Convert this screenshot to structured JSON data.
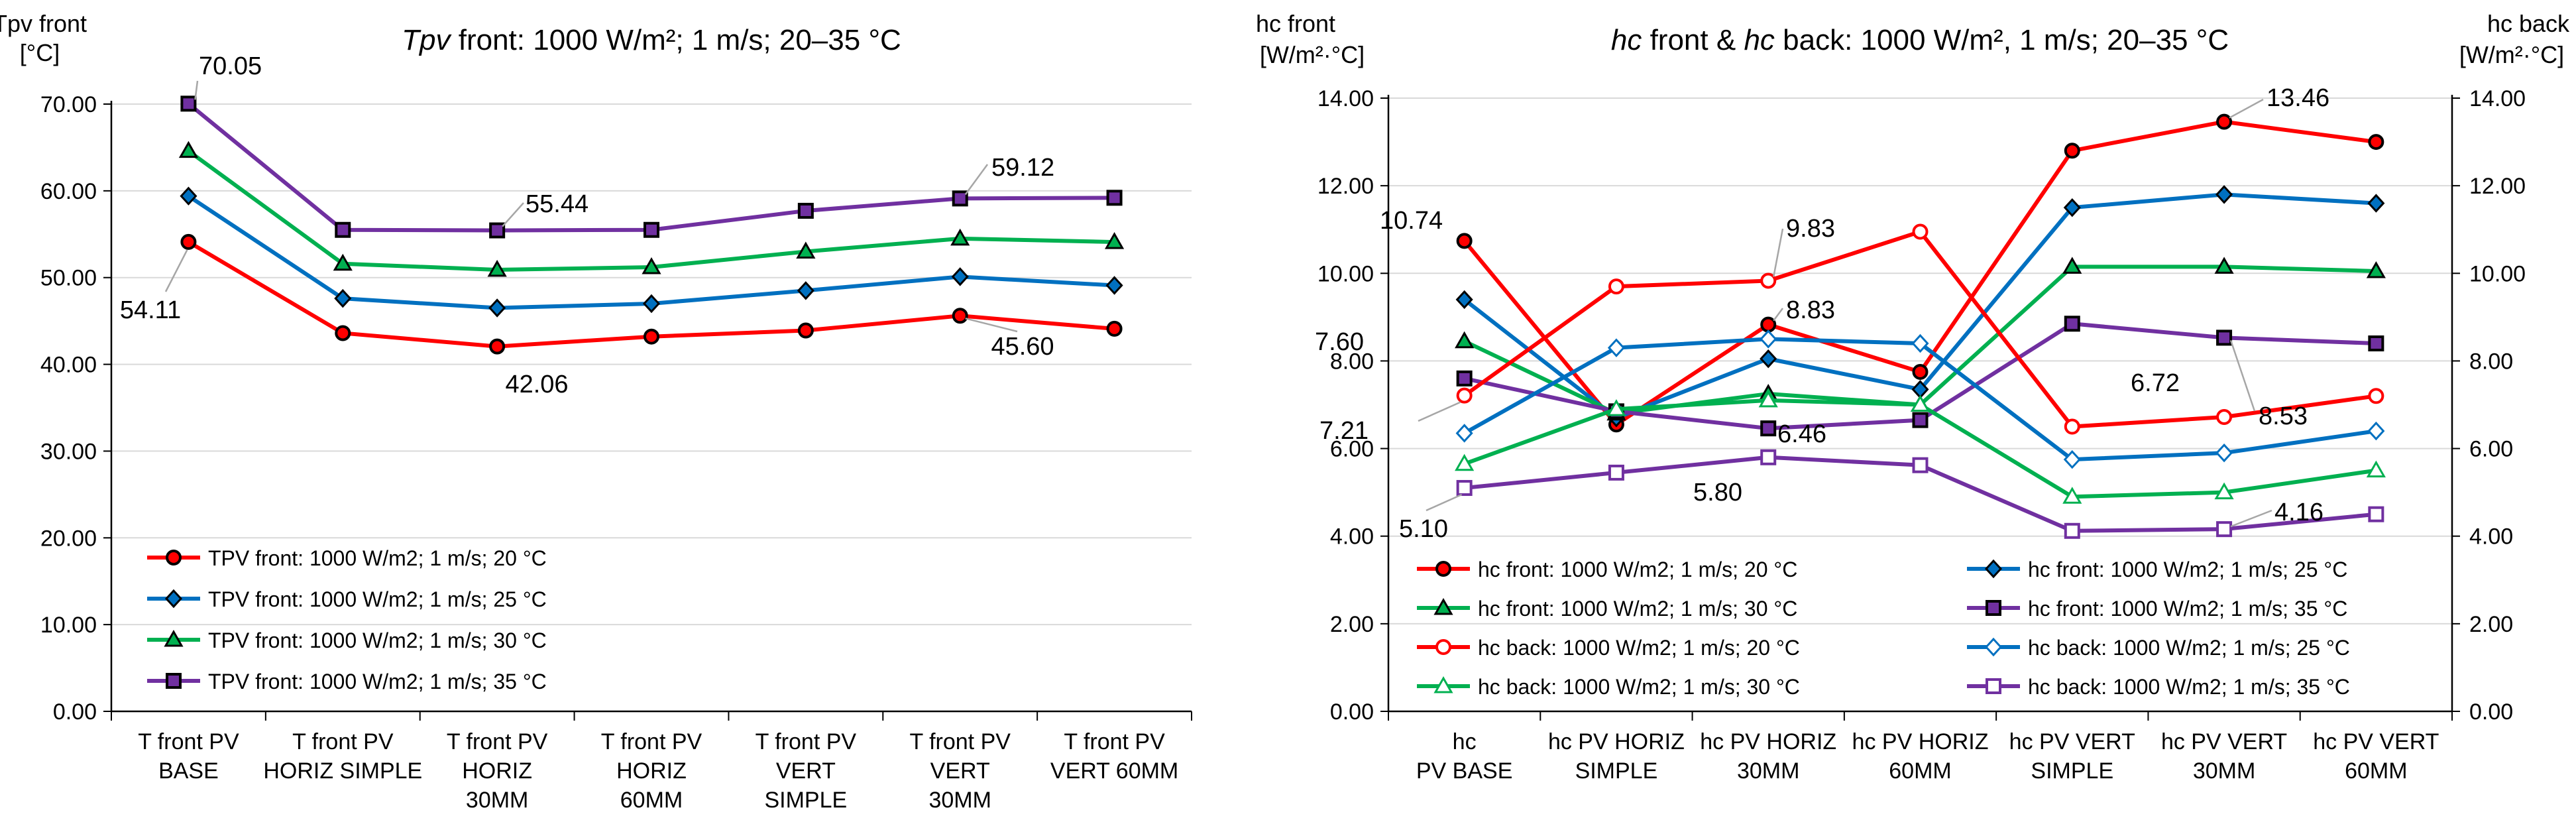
{
  "chart_data": [
    {
      "type": "line",
      "title": "front: 1000 W/m²; 1 m/s; 20–35 °C",
      "title_italic": "Tpv",
      "ylabel_lines": [
        "Tpv front",
        "[°C]"
      ],
      "ylim": [
        0,
        70
      ],
      "yticks": [
        "0.00",
        "10.00",
        "20.00",
        "30.00",
        "40.00",
        "50.00",
        "60.00",
        "70.00"
      ],
      "grid": true,
      "legend_position": "bottom-left",
      "categories": [
        [
          "T front PV",
          "BASE"
        ],
        [
          "T front PV",
          "HORIZ SIMPLE"
        ],
        [
          "T front PV",
          "HORIZ",
          "30MM"
        ],
        [
          "T front PV",
          "HORIZ",
          "60MM"
        ],
        [
          "T front PV",
          "VERT",
          "SIMPLE"
        ],
        [
          "T front PV",
          "VERT",
          "30MM"
        ],
        [
          "T front PV",
          "VERT      60MM"
        ]
      ],
      "series": [
        {
          "name": "TPV front: 1000 W/m2; 1 m/s; 20 °C",
          "color": "#ff0000",
          "marker": "circle",
          "values": [
            54.11,
            43.6,
            42.06,
            43.2,
            43.9,
            45.6,
            44.1
          ]
        },
        {
          "name": "TPV front: 1000 W/m2; 1 m/s; 25 °C",
          "color": "#0070c0",
          "marker": "diamond",
          "values": [
            59.4,
            47.6,
            46.5,
            47.0,
            48.5,
            50.1,
            49.1
          ]
        },
        {
          "name": "TPV front: 1000 W/m2; 1 m/s; 30 °C",
          "color": "#00b050",
          "marker": "triangle",
          "values": [
            64.6,
            51.6,
            50.9,
            51.2,
            53.0,
            54.5,
            54.1
          ]
        },
        {
          "name": "TPV front: 1000 W/m2; 1 m/s; 35 °C",
          "color": "#7030a0",
          "marker": "square",
          "values": [
            70.05,
            55.5,
            55.44,
            55.5,
            57.7,
            59.12,
            59.2
          ]
        }
      ],
      "annotations": [
        "70.05",
        "55.44",
        "59.12",
        "54.11",
        "42.06",
        "45.60"
      ]
    },
    {
      "type": "line",
      "title_parts": [
        "hc",
        " front & ",
        "hc",
        " back: 1000 W/m², 1 m/s; 20–35 °C"
      ],
      "ylabel_left_lines": [
        "hc front",
        "[W/m²·°C]"
      ],
      "ylabel_right_lines": [
        "hc back",
        "[W/m²·°C]"
      ],
      "ylim": [
        0,
        14
      ],
      "yticks": [
        "0.00",
        "2.00",
        "4.00",
        "6.00",
        "8.00",
        "10.00",
        "12.00",
        "14.00"
      ],
      "grid": true,
      "legend_position": "bottom",
      "categories": [
        [
          "hc",
          "PV BASE"
        ],
        [
          "hc PV HORIZ",
          "SIMPLE"
        ],
        [
          "hc PV HORIZ",
          "30MM"
        ],
        [
          "hc PV HORIZ",
          "60MM"
        ],
        [
          "hc PV VERT",
          "SIMPLE"
        ],
        [
          "hc PV VERT",
          "30MM"
        ],
        [
          "hc PV VERT",
          "60MM"
        ]
      ],
      "series": [
        {
          "name": "hc front: 1000 W/m2; 1 m/s; 20 °C",
          "color": "#ff0000",
          "marker": "circle",
          "filled": true,
          "values": [
            10.74,
            6.55,
            8.83,
            7.75,
            12.8,
            13.46,
            13.0
          ]
        },
        {
          "name": "hc front: 1000 W/m2; 1 m/s; 25 °C",
          "color": "#0070c0",
          "marker": "diamond",
          "filled": true,
          "values": [
            9.4,
            6.7,
            8.05,
            7.35,
            11.5,
            11.8,
            11.6
          ]
        },
        {
          "name": "hc front: 1000 W/m2; 1 m/s; 30 °C",
          "color": "#00b050",
          "marker": "triangle",
          "filled": true,
          "values": [
            8.45,
            6.8,
            7.25,
            7.0,
            10.15,
            10.15,
            10.05
          ]
        },
        {
          "name": "hc front: 1000 W/m2; 1 m/s; 35 °C",
          "color": "#7030a0",
          "marker": "square",
          "filled": true,
          "values": [
            7.6,
            6.85,
            6.46,
            6.65,
            8.85,
            8.53,
            8.4
          ]
        },
        {
          "name": "hc back: 1000 W/m2; 1 m/s; 20 °C",
          "color": "#ff0000",
          "marker": "circle",
          "filled": false,
          "values": [
            7.21,
            9.7,
            9.83,
            10.95,
            6.5,
            6.72,
            7.2
          ]
        },
        {
          "name": "hc back: 1000 W/m2; 1 m/s; 25 °C",
          "color": "#0070c0",
          "marker": "diamond",
          "filled": false,
          "values": [
            6.35,
            8.3,
            8.5,
            8.4,
            5.75,
            5.9,
            6.4
          ]
        },
        {
          "name": "hc back: 1000 W/m2; 1 m/s; 30 °C",
          "color": "#00b050",
          "marker": "triangle",
          "filled": false,
          "values": [
            5.65,
            6.9,
            7.1,
            7.0,
            4.9,
            5.0,
            5.5
          ]
        },
        {
          "name": "hc back: 1000 W/m2; 1 m/s; 35 °C",
          "color": "#7030a0",
          "marker": "square",
          "filled": false,
          "values": [
            5.1,
            5.45,
            5.8,
            5.62,
            4.12,
            4.16,
            4.5
          ]
        }
      ],
      "annotations": [
        "10.74",
        "7.60",
        "7.21",
        "5.10",
        "9.83",
        "8.83",
        "6.46",
        "5.80",
        "13.46",
        "6.72",
        "8.53",
        "4.16"
      ]
    }
  ]
}
